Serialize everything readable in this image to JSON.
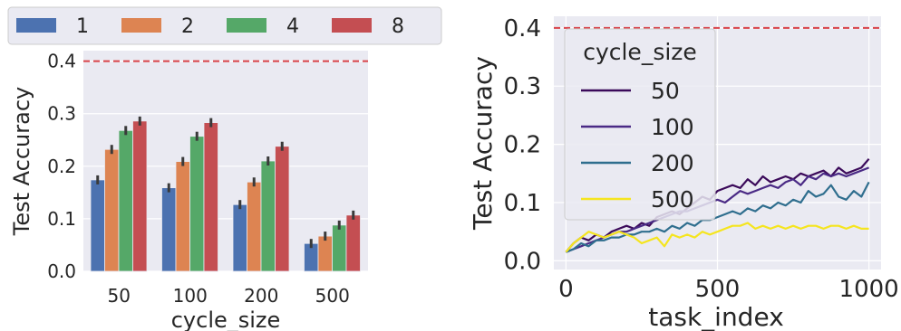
{
  "legend_top": {
    "title": "",
    "entries": [
      "1",
      "2",
      "4",
      "8"
    ]
  },
  "left_chart": {
    "xlabel": "cycle_size",
    "ylabel": "Test Accuracy",
    "yticks": [
      "0.0",
      "0.1",
      "0.2",
      "0.3",
      "0.4"
    ],
    "xticks": [
      "50",
      "100",
      "200",
      "500"
    ]
  },
  "right_chart": {
    "xlabel": "task_index",
    "ylabel": "Test Accuracy",
    "yticks": [
      "0.0",
      "0.1",
      "0.2",
      "0.3",
      "0.4"
    ],
    "xticks": [
      "0",
      "500",
      "1000"
    ],
    "legend": {
      "title": "cycle_size",
      "entries": [
        "50",
        "100",
        "200",
        "500"
      ]
    }
  },
  "colors": {
    "bg": "#eaeaf2",
    "grid": "#ffffff",
    "ref_line": "#d9434a",
    "bar_series": [
      "#4c72b0",
      "#dd8452",
      "#55a868",
      "#c44e52"
    ],
    "line_series": [
      "#3b0a5a",
      "#4a2a85",
      "#2f6e8e",
      "#f5e51f"
    ]
  },
  "chart_data": [
    {
      "type": "bar",
      "categories": [
        "50",
        "100",
        "200",
        "500"
      ],
      "xlabel": "cycle_size",
      "ylabel": "Test Accuracy",
      "ylim": [
        0,
        0.42
      ],
      "reference_line": 0.4,
      "legend_placement": "top",
      "grid": true,
      "series": [
        {
          "name": "1",
          "values": [
            0.174,
            0.159,
            0.127,
            0.053
          ]
        },
        {
          "name": "2",
          "values": [
            0.232,
            0.209,
            0.17,
            0.067
          ]
        },
        {
          "name": "4",
          "values": [
            0.268,
            0.257,
            0.21,
            0.088
          ]
        },
        {
          "name": "8",
          "values": [
            0.286,
            0.283,
            0.238,
            0.107
          ]
        }
      ]
    },
    {
      "type": "line",
      "xlabel": "task_index",
      "ylabel": "Test Accuracy",
      "xlim": [
        -40,
        1040
      ],
      "ylim": [
        -0.015,
        0.42
      ],
      "reference_line": 0.4,
      "legend_title": "cycle_size",
      "legend_placement": "upper-left",
      "grid": true,
      "x": [
        0,
        25,
        50,
        75,
        100,
        125,
        150,
        175,
        200,
        225,
        250,
        275,
        300,
        325,
        350,
        375,
        400,
        425,
        450,
        475,
        500,
        525,
        550,
        575,
        600,
        625,
        650,
        675,
        700,
        725,
        750,
        775,
        800,
        825,
        850,
        875,
        900,
        925,
        950,
        975,
        1000
      ],
      "series": [
        {
          "name": "50",
          "values": [
            0.015,
            0.03,
            0.04,
            0.035,
            0.045,
            0.04,
            0.05,
            0.055,
            0.06,
            0.055,
            0.065,
            0.06,
            0.075,
            0.08,
            0.085,
            0.08,
            0.09,
            0.1,
            0.11,
            0.105,
            0.12,
            0.125,
            0.13,
            0.125,
            0.14,
            0.13,
            0.145,
            0.135,
            0.14,
            0.145,
            0.14,
            0.15,
            0.145,
            0.15,
            0.155,
            0.145,
            0.16,
            0.15,
            0.155,
            0.16,
            0.175
          ]
        },
        {
          "name": "100",
          "values": [
            0.015,
            0.02,
            0.025,
            0.03,
            0.035,
            0.04,
            0.045,
            0.05,
            0.05,
            0.055,
            0.06,
            0.065,
            0.07,
            0.075,
            0.08,
            0.085,
            0.085,
            0.09,
            0.095,
            0.1,
            0.105,
            0.1,
            0.11,
            0.12,
            0.115,
            0.12,
            0.125,
            0.13,
            0.125,
            0.135,
            0.14,
            0.13,
            0.145,
            0.14,
            0.15,
            0.145,
            0.15,
            0.145,
            0.15,
            0.155,
            0.16
          ]
        },
        {
          "name": "200",
          "values": [
            0.015,
            0.02,
            0.03,
            0.025,
            0.035,
            0.035,
            0.04,
            0.04,
            0.045,
            0.045,
            0.05,
            0.05,
            0.055,
            0.05,
            0.06,
            0.055,
            0.065,
            0.06,
            0.07,
            0.07,
            0.075,
            0.08,
            0.085,
            0.08,
            0.09,
            0.085,
            0.095,
            0.09,
            0.1,
            0.095,
            0.105,
            0.1,
            0.12,
            0.11,
            0.115,
            0.13,
            0.11,
            0.105,
            0.12,
            0.11,
            0.135
          ]
        },
        {
          "name": "500",
          "values": [
            0.015,
            0.03,
            0.04,
            0.05,
            0.045,
            0.04,
            0.045,
            0.05,
            0.045,
            0.04,
            0.03,
            0.035,
            0.04,
            0.025,
            0.045,
            0.04,
            0.045,
            0.04,
            0.05,
            0.045,
            0.05,
            0.055,
            0.06,
            0.06,
            0.065,
            0.055,
            0.06,
            0.055,
            0.06,
            0.055,
            0.06,
            0.055,
            0.06,
            0.06,
            0.055,
            0.06,
            0.06,
            0.055,
            0.06,
            0.055,
            0.055
          ]
        }
      ]
    }
  ]
}
